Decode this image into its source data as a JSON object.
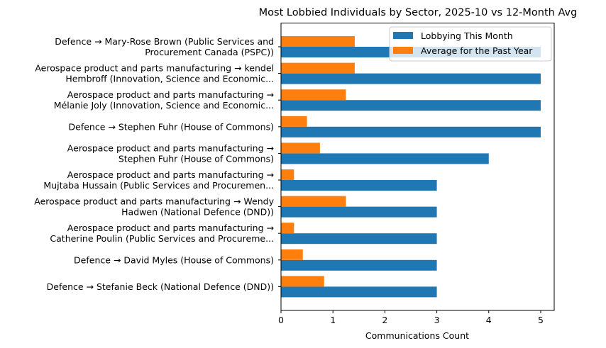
{
  "chart_data": {
    "type": "bar",
    "orientation": "horizontal",
    "title": "Most Lobbied Individuals by Sector, 2025-10 vs 12-Month Avg",
    "xlabel": "Communications Count",
    "ylabel": "",
    "xlim": [
      0,
      5.26
    ],
    "xticks": [
      "0",
      "1",
      "2",
      "3",
      "4",
      "5"
    ],
    "grid": false,
    "legend_position": "top-right",
    "categories": [
      [
        "Defence → Mary-Rose Brown (Public Services and",
        "Procurement Canada (PSPC))"
      ],
      [
        "Aerospace product and parts manufacturing → kendel",
        "Hembroff (Innovation, Science and Economic..."
      ],
      [
        "Aerospace product and parts manufacturing →",
        "Mélanie Joly (Innovation, Science and Economic..."
      ],
      [
        "Defence → Stephen Fuhr (House of Commons)"
      ],
      [
        "Aerospace product and parts manufacturing →",
        "Stephen Fuhr (House of Commons)"
      ],
      [
        "Aerospace product and parts manufacturing →",
        "Mujtaba Hussain (Public Services and Procuremen..."
      ],
      [
        "Aerospace product and parts manufacturing → Wendy",
        "Hadwen (National Defence (DND))"
      ],
      [
        "Aerospace product and parts manufacturing →",
        "Catherine Poulin (Public Services and Procureme..."
      ],
      [
        "Defence → David Myles (House of Commons)"
      ],
      [
        "Defence → Stefanie Beck (National Defence (DND))"
      ]
    ],
    "series": [
      {
        "name": "Lobbying This Month",
        "color": "#1f77b4",
        "values": [
          5,
          5,
          5,
          5,
          4,
          3,
          3,
          3,
          3,
          3
        ]
      },
      {
        "name": "Average for the Past Year",
        "color": "#ff7f0e",
        "values": [
          1.42,
          1.42,
          1.25,
          0.5,
          0.75,
          0.25,
          1.25,
          0.25,
          0.42,
          0.83
        ]
      }
    ]
  }
}
